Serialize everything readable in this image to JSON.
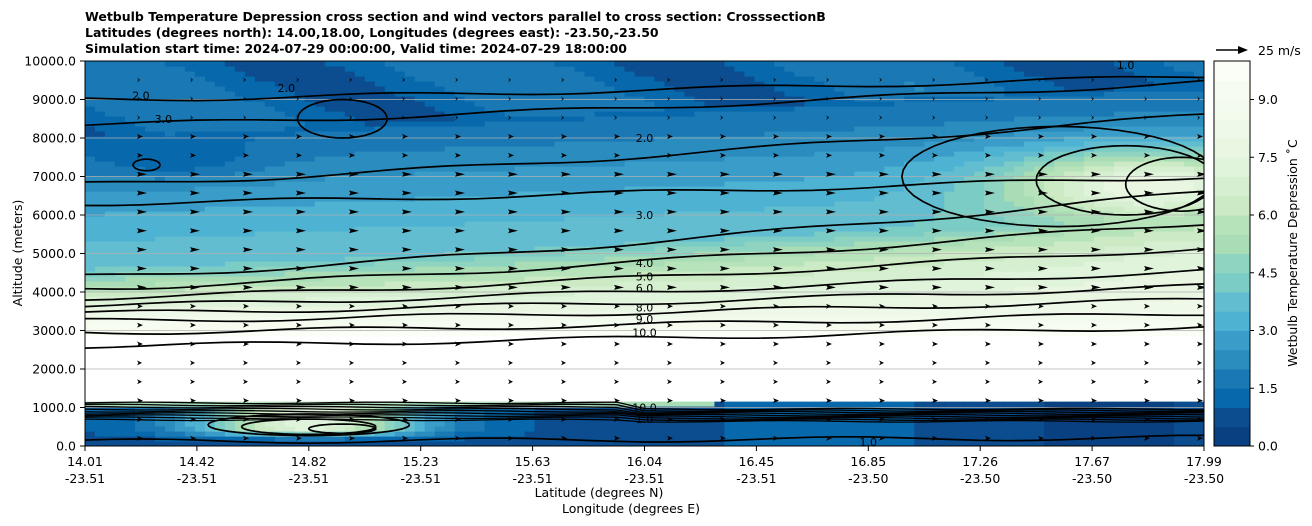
{
  "chart_data": {
    "type": "contour",
    "title_lines": [
      "Wetbulb Temperature Depression cross section and wind vectors parallel to cross section: CrosssectionB",
      "Latitudes (degrees north): 14.00,18.00, Longitudes (degrees east): -23.50,-23.50",
      "Simulation start time: 2024-07-29 00:00:00, Valid time: 2024-07-29 18:00:00"
    ],
    "ylabel": "Altitude (meters)",
    "xlabel_lat": "Latitude (degrees N)",
    "xlabel_lon": "Longitude (degrees E)",
    "ylim": [
      0,
      10000
    ],
    "yticks": [
      "0.0",
      "1000.0",
      "2000.0",
      "3000.0",
      "4000.0",
      "5000.0",
      "6000.0",
      "7000.0",
      "8000.0",
      "9000.0",
      "10000.0"
    ],
    "x_ticks": [
      {
        "lat": "14.01",
        "lon": "-23.51"
      },
      {
        "lat": "14.42",
        "lon": "-23.51"
      },
      {
        "lat": "14.82",
        "lon": "-23.51"
      },
      {
        "lat": "15.23",
        "lon": "-23.51"
      },
      {
        "lat": "15.63",
        "lon": "-23.51"
      },
      {
        "lat": "16.04",
        "lon": "-23.51"
      },
      {
        "lat": "16.45",
        "lon": "-23.51"
      },
      {
        "lat": "16.85",
        "lon": "-23.50"
      },
      {
        "lat": "17.26",
        "lon": "-23.50"
      },
      {
        "lat": "17.67",
        "lon": "-23.50"
      },
      {
        "lat": "17.99",
        "lon": "-23.50"
      }
    ],
    "colorbar": {
      "label": "Wetbulb Temperature Depression ˚C",
      "ticks": [
        "0.0",
        "1.5",
        "3.0",
        "4.5",
        "6.0",
        "7.5",
        "9.0"
      ],
      "range": [
        0,
        10
      ],
      "levels": 20,
      "colors": [
        "#084081",
        "#0b4d8f",
        "#0868ac",
        "#1a79b5",
        "#2b8cbe",
        "#3a9cc8",
        "#4eb3d3",
        "#62bdd0",
        "#7bccc4",
        "#8fd3c1",
        "#a8ddb5",
        "#b7e3bb",
        "#ccebc5",
        "#d6efd0",
        "#e0f3db",
        "#e8f6e2",
        "#eef9e9",
        "#f3fbee",
        "#f7fcf0",
        "#fbfef7"
      ]
    },
    "contour_labels": [
      "1.0",
      "2.0",
      "3.0",
      "4.0",
      "5.0",
      "6.0",
      "8.0",
      "9.0",
      "10.0"
    ],
    "quiver_key": {
      "label": "25 m/s",
      "magnitude": 25
    },
    "grid": "horizontal"
  }
}
